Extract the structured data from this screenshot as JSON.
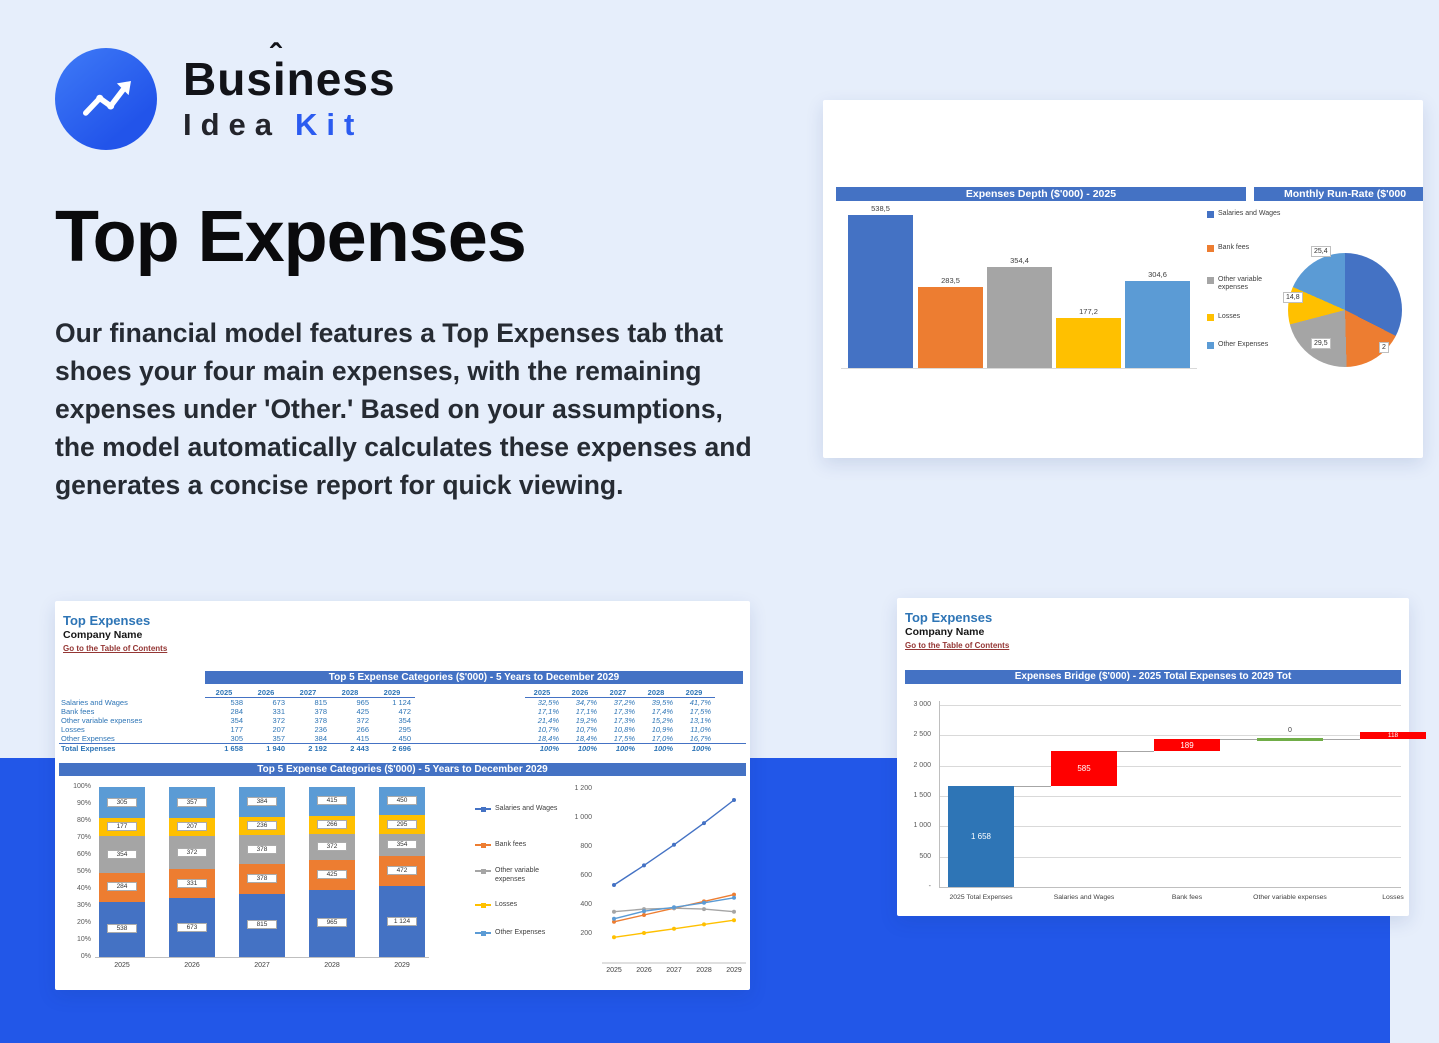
{
  "brand": {
    "line1": "Business",
    "caret": "ˆ",
    "line2_word1": "Idea",
    "line2_word2": "Kit"
  },
  "hero": {
    "title": "Top Expenses",
    "description": "Our financial model features a Top Expenses tab that shoes your four main expenses, with the remaining expenses under 'Other.' Based on your assumptions, the model automatically calculates these expenses and generates a concise report for quick viewing."
  },
  "palette": {
    "series": [
      "#4472C4",
      "#ED7D31",
      "#A5A5A5",
      "#FFC000",
      "#5B9BD5"
    ],
    "header_bar": "#4472C4",
    "waterfall_total": "#2E75B6",
    "waterfall_increase": "#FF0000",
    "waterfall_zero": "#70AD47",
    "band_blue": "#2257E8",
    "sheet_title_blue": "#2E75B6",
    "toc_maroon": "#943634"
  },
  "sheet": {
    "title": "Top Expenses",
    "company": "Company Name",
    "toc": "Go to the Table of Contents"
  },
  "depth_card": {
    "left_header": "Expenses Depth ($'000) - 2025",
    "right_header": "Monthly Run-Rate ($'000"
  },
  "top5": {
    "header": "Top 5 Expense Categories ($'000) - 5 Years to December 2029",
    "years": [
      "2025",
      "2026",
      "2027",
      "2028",
      "2029"
    ],
    "rows": [
      {
        "label": "Salaries and Wages",
        "values": [
          "538",
          "673",
          "815",
          "965",
          "1 124"
        ],
        "pcts": [
          "32,5%",
          "34,7%",
          "37,2%",
          "39,5%",
          "41,7%"
        ]
      },
      {
        "label": "Bank fees",
        "values": [
          "284",
          "331",
          "378",
          "425",
          "472"
        ],
        "pcts": [
          "17,1%",
          "17,1%",
          "17,3%",
          "17,4%",
          "17,5%"
        ]
      },
      {
        "label": "Other variable expenses",
        "values": [
          "354",
          "372",
          "378",
          "372",
          "354"
        ],
        "pcts": [
          "21,4%",
          "19,2%",
          "17,3%",
          "15,2%",
          "13,1%"
        ]
      },
      {
        "label": "Losses",
        "values": [
          "177",
          "207",
          "236",
          "266",
          "295"
        ],
        "pcts": [
          "10,7%",
          "10,7%",
          "10,8%",
          "10,9%",
          "11,0%"
        ]
      },
      {
        "label": "Other Expenses",
        "values": [
          "305",
          "357",
          "384",
          "415",
          "450"
        ],
        "pcts": [
          "18,4%",
          "18,4%",
          "17,5%",
          "17,0%",
          "16,7%"
        ]
      }
    ],
    "total": {
      "label": "Total Expenses",
      "values": [
        "1 658",
        "1 940",
        "2 192",
        "2 443",
        "2 696"
      ],
      "pcts": [
        "100%",
        "100%",
        "100%",
        "100%",
        "100%"
      ]
    }
  },
  "bridge": {
    "header": "Expenses Bridge ($'000) - 2025 Total Expenses to 2029 Tot"
  },
  "chart_data": [
    {
      "id": "expenses-depth-2025",
      "type": "bar",
      "title": "Expenses Depth ($'000) - 2025",
      "categories": [
        "Salaries and Wages",
        "Bank fees",
        "Other variable expenses",
        "Losses",
        "Other Expenses"
      ],
      "values": [
        538.5,
        283.5,
        354.4,
        177.2,
        304.6
      ],
      "value_labels": [
        "538,5",
        "283,5",
        "354,4",
        "177,2",
        "304,6"
      ],
      "colors": [
        "#4472C4",
        "#ED7D31",
        "#A5A5A5",
        "#FFC000",
        "#5B9BD5"
      ],
      "ylim": [
        0,
        600
      ],
      "legend_position": "right"
    },
    {
      "id": "monthly-run-rate",
      "type": "pie",
      "title": "Monthly Run-Rate ($'000",
      "labels": [
        "Salaries and Wages",
        "Bank fees",
        "Other variable expenses",
        "Losses",
        "Other Expenses"
      ],
      "values": [
        44.9,
        23.6,
        29.5,
        14.8,
        25.4
      ],
      "visible_value_labels": [
        "25,4",
        "14,8",
        "29,5",
        "2"
      ]
    },
    {
      "id": "top5-stacked",
      "type": "bar",
      "subtype": "percent-stacked",
      "title": "Top 5 Expense Categories ($'000) - 5 Years to December 2029",
      "categories": [
        "2025",
        "2026",
        "2027",
        "2028",
        "2029"
      ],
      "series": [
        {
          "name": "Salaries and Wages",
          "values": [
            538,
            673,
            815,
            965,
            1124
          ],
          "labels": [
            "538",
            "673",
            "815",
            "965",
            "1 124"
          ]
        },
        {
          "name": "Bank fees",
          "values": [
            284,
            331,
            378,
            425,
            472
          ],
          "labels": [
            "284",
            "331",
            "378",
            "425",
            "472"
          ]
        },
        {
          "name": "Other variable expenses",
          "values": [
            354,
            372,
            378,
            372,
            354
          ],
          "labels": [
            "354",
            "372",
            "378",
            "372",
            "354"
          ]
        },
        {
          "name": "Losses",
          "values": [
            177,
            207,
            236,
            266,
            295
          ],
          "labels": [
            "177",
            "207",
            "236",
            "266",
            "295"
          ]
        },
        {
          "name": "Other Expenses",
          "values": [
            305,
            357,
            384,
            415,
            450
          ],
          "labels": [
            "305",
            "357",
            "384",
            "415",
            "450"
          ]
        }
      ],
      "y_ticks": [
        "100%",
        "90%",
        "80%",
        "70%",
        "60%",
        "50%",
        "40%",
        "30%",
        "20%",
        "10%",
        "0%"
      ]
    },
    {
      "id": "top5-lines",
      "type": "line",
      "x": [
        "2025",
        "2026",
        "2027",
        "2028",
        "2029"
      ],
      "series": [
        {
          "name": "Salaries and Wages",
          "values": [
            538,
            673,
            815,
            965,
            1124
          ]
        },
        {
          "name": "Bank fees",
          "values": [
            284,
            331,
            378,
            425,
            472
          ]
        },
        {
          "name": "Other variable expenses",
          "values": [
            354,
            372,
            378,
            372,
            354
          ]
        },
        {
          "name": "Losses",
          "values": [
            177,
            207,
            236,
            266,
            295
          ]
        },
        {
          "name": "Other Expenses",
          "values": [
            305,
            357,
            384,
            415,
            450
          ]
        }
      ],
      "y_ticks": [
        "1 200",
        "1 000",
        "800",
        "600",
        "400",
        "200"
      ],
      "ylim": [
        0,
        1200
      ]
    },
    {
      "id": "expenses-bridge",
      "type": "bar",
      "subtype": "waterfall",
      "title": "Expenses Bridge ($'000) - 2025 Total Expenses to 2029 Tot",
      "categories": [
        "2025 Total Expenses",
        "Salaries and Wages",
        "Bank fees",
        "Other variable expenses",
        "Losses"
      ],
      "values": [
        1658,
        585,
        189,
        0,
        118
      ],
      "value_labels": [
        "1 658",
        "585",
        "189",
        "0",
        "118"
      ],
      "roles": [
        "total",
        "increase",
        "increase",
        "zero",
        "increase"
      ],
      "y_ticks": [
        "3 000",
        "2 500",
        "2 000",
        "1 500",
        "1 000",
        "500",
        "-"
      ],
      "ylim": [
        0,
        3000
      ]
    }
  ]
}
